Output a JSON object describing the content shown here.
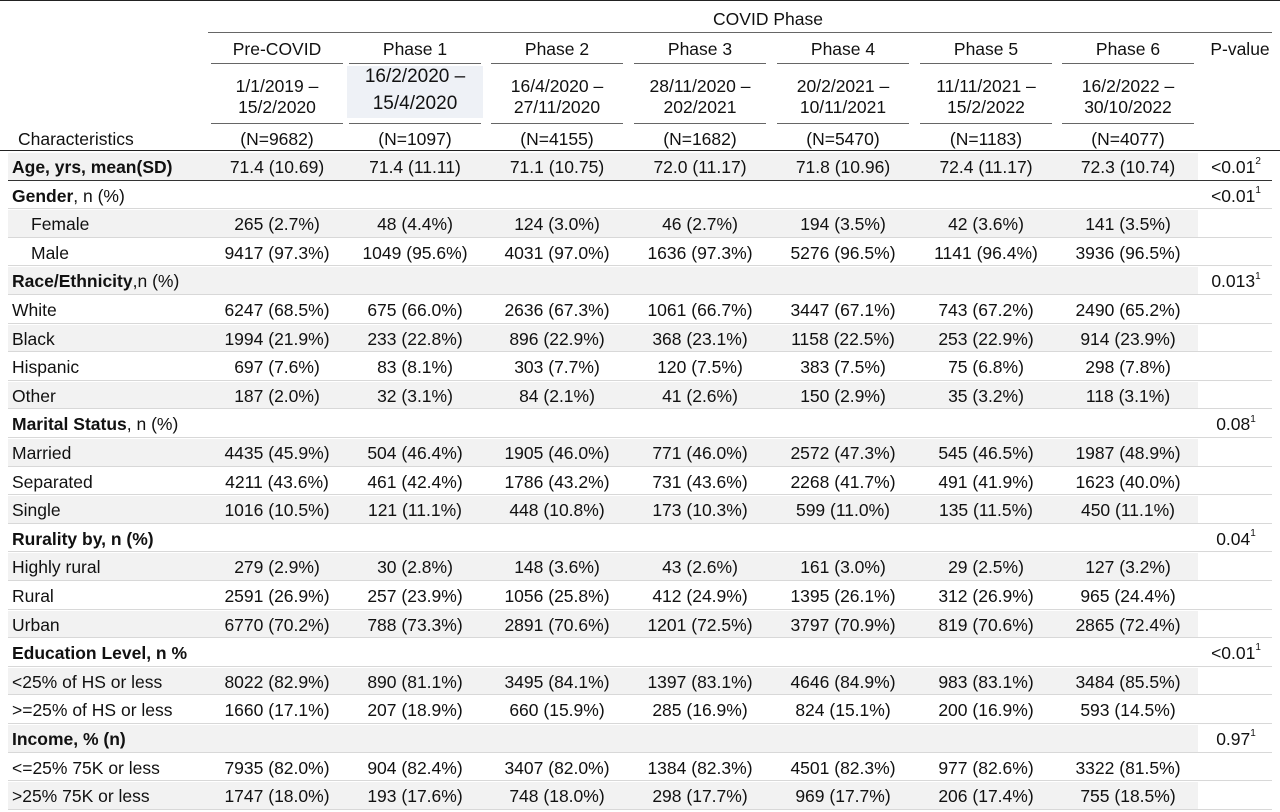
{
  "header": {
    "group_title": "COVID Phase",
    "characteristics_label": "Characteristics",
    "pvalue_label": "P-value",
    "phases": [
      {
        "name": "Pre-COVID",
        "date1": "1/1/2019 –",
        "date2": "15/2/2020",
        "n": "(N=9682)"
      },
      {
        "name": "Phase 1",
        "date1": "16/2/2020 –",
        "date2": "15/4/2020",
        "n": "(N=1097)"
      },
      {
        "name": "Phase 2",
        "date1": "16/4/2020 –",
        "date2": "27/11/2020",
        "n": "(N=4155)"
      },
      {
        "name": "Phase 3",
        "date1": "28/11/2020 –",
        "date2": "202/2021",
        "n": "(N=1682)"
      },
      {
        "name": "Phase 4",
        "date1": "20/2/2021 –",
        "date2": "10/11/2021",
        "n": "(N=5470)"
      },
      {
        "name": "Phase 5",
        "date1": "11/11/2021 –",
        "date2": "15/2/2022",
        "n": "(N=1183)"
      },
      {
        "name": "Phase 6",
        "date1": "16/2/2022 –",
        "date2": "30/10/2022",
        "n": "(N=4077)"
      }
    ]
  },
  "rows": [
    {
      "label": "Age, yrs, mean(SD)",
      "bold": "Age, yrs, mean(SD)",
      "rest": "",
      "type": "data",
      "indent": false,
      "values": [
        "71.4 (10.69)",
        "71.4 (11.11)",
        "71.1 (10.75)",
        "72.0 (11.17)",
        "71.8 (10.96)",
        "72.4 (11.17)",
        "72.3 (10.74)"
      ],
      "p": "<0.01",
      "sup": "2"
    },
    {
      "label": "Gender, n (%)",
      "bold": "Gender",
      "rest": ", n (%)",
      "type": "section",
      "p": "<0.01",
      "sup": "1"
    },
    {
      "label": "Female",
      "type": "data",
      "indent": true,
      "values": [
        "265 (2.7%)",
        "48 (4.4%)",
        "124 (3.0%)",
        "46 (2.7%)",
        "194 (3.5%)",
        "42 (3.6%)",
        "141 (3.5%)"
      ]
    },
    {
      "label": "Male",
      "type": "data",
      "indent": true,
      "values": [
        "9417 (97.3%)",
        "1049 (95.6%)",
        "4031 (97.0%)",
        "1636 (97.3%)",
        "5276 (96.5%)",
        "1141 (96.4%)",
        "3936 (96.5%)"
      ]
    },
    {
      "label": "Race/Ethnicity,n (%)",
      "bold": "Race/Ethnicity",
      "rest": ",n (%)",
      "type": "section",
      "p": "0.013",
      "sup": "1"
    },
    {
      "label": "White",
      "type": "data",
      "indent": false,
      "values": [
        "6247 (68.5%)",
        "675 (66.0%)",
        "2636 (67.3%)",
        "1061 (66.7%)",
        "3447 (67.1%)",
        "743 (67.2%)",
        "2490 (65.2%)"
      ]
    },
    {
      "label": "Black",
      "type": "data",
      "indent": false,
      "values": [
        "1994 (21.9%)",
        "233 (22.8%)",
        "896 (22.9%)",
        "368 (23.1%)",
        "1158 (22.5%)",
        "253 (22.9%)",
        "914 (23.9%)"
      ]
    },
    {
      "label": "Hispanic",
      "type": "data",
      "indent": false,
      "values": [
        "697 (7.6%)",
        "83 (8.1%)",
        "303 (7.7%)",
        "120 (7.5%)",
        "383 (7.5%)",
        "75 (6.8%)",
        "298 (7.8%)"
      ]
    },
    {
      "label": "Other",
      "type": "data",
      "indent": false,
      "values": [
        "187 (2.0%)",
        "32 (3.1%)",
        "84 (2.1%)",
        "41 (2.6%)",
        "150 (2.9%)",
        "35 (3.2%)",
        "118 (3.1%)"
      ]
    },
    {
      "label": "Marital Status, n (%)",
      "bold": "Marital Status",
      "rest": ", n (%)",
      "type": "section",
      "p": "0.08",
      "sup": "1"
    },
    {
      "label": "Married",
      "type": "data",
      "indent": false,
      "values": [
        "4435 (45.9%)",
        "504 (46.4%)",
        "1905 (46.0%)",
        "771 (46.0%)",
        "2572 (47.3%)",
        "545 (46.5%)",
        "1987 (48.9%)"
      ]
    },
    {
      "label": "Separated",
      "type": "data",
      "indent": false,
      "values": [
        "4211 (43.6%)",
        "461 (42.4%)",
        "1786 (43.2%)",
        "731 (43.6%)",
        "2268 (41.7%)",
        "491 (41.9%)",
        "1623 (40.0%)"
      ]
    },
    {
      "label": "Single",
      "type": "data",
      "indent": false,
      "values": [
        "1016 (10.5%)",
        "121 (11.1%)",
        "448 (10.8%)",
        "173 (10.3%)",
        "599 (11.0%)",
        "135 (11.5%)",
        "450 (11.1%)"
      ]
    },
    {
      "label": "Rurality by, n (%)",
      "bold": "Rurality by, n (%)",
      "rest": "",
      "type": "section",
      "p": "0.04",
      "sup": "1"
    },
    {
      "label": "Highly rural",
      "type": "data",
      "indent": false,
      "values": [
        "279 (2.9%)",
        "30 (2.8%)",
        "148 (3.6%)",
        "43 (2.6%)",
        "161 (3.0%)",
        "29 (2.5%)",
        "127 (3.2%)"
      ]
    },
    {
      "label": "Rural",
      "type": "data",
      "indent": false,
      "values": [
        "2591 (26.9%)",
        "257 (23.9%)",
        "1056 (25.8%)",
        "412 (24.9%)",
        "1395 (26.1%)",
        "312 (26.9%)",
        "965 (24.4%)"
      ]
    },
    {
      "label": "Urban",
      "type": "data",
      "indent": false,
      "values": [
        "6770 (70.2%)",
        "788 (73.3%)",
        "2891 (70.6%)",
        "1201 (72.5%)",
        "3797 (70.9%)",
        "819 (70.6%)",
        "2865 (72.4%)"
      ]
    },
    {
      "label": "Education Level, n %",
      "bold": "Education Level, n %",
      "rest": "",
      "type": "section",
      "p": "<0.01",
      "sup": "1"
    },
    {
      "label": "<25% of HS or less",
      "type": "data",
      "indent": false,
      "values": [
        "8022 (82.9%)",
        "890 (81.1%)",
        "3495 (84.1%)",
        "1397 (83.1%)",
        "4646 (84.9%)",
        "983 (83.1%)",
        "3484 (85.5%)"
      ]
    },
    {
      "label": ">=25% of HS or less",
      "type": "data",
      "indent": false,
      "values": [
        "1660 (17.1%)",
        "207 (18.9%)",
        "660 (15.9%)",
        "285 (16.9%)",
        "824 (15.1%)",
        "200 (16.9%)",
        "593 (14.5%)"
      ]
    },
    {
      "label": "Income, % (n)",
      "bold": "Income, % (n)",
      "rest": "",
      "type": "section",
      "p": "0.97",
      "sup": "1"
    },
    {
      "label": "<=25% 75K or less",
      "type": "data",
      "indent": false,
      "values": [
        "7935 (82.0%)",
        "904 (82.4%)",
        "3407 (82.0%)",
        "1384 (82.3%)",
        "4501 (82.3%)",
        "977 (82.6%)",
        "3322 (81.5%)"
      ]
    },
    {
      "label": ">25% 75K or less",
      "type": "data",
      "indent": false,
      "values": [
        "1747 (18.0%)",
        "193 (17.6%)",
        "748 (18.0%)",
        "298 (17.7%)",
        "969 (17.7%)",
        "206 (17.4%)",
        "755 (18.5%)"
      ]
    }
  ]
}
